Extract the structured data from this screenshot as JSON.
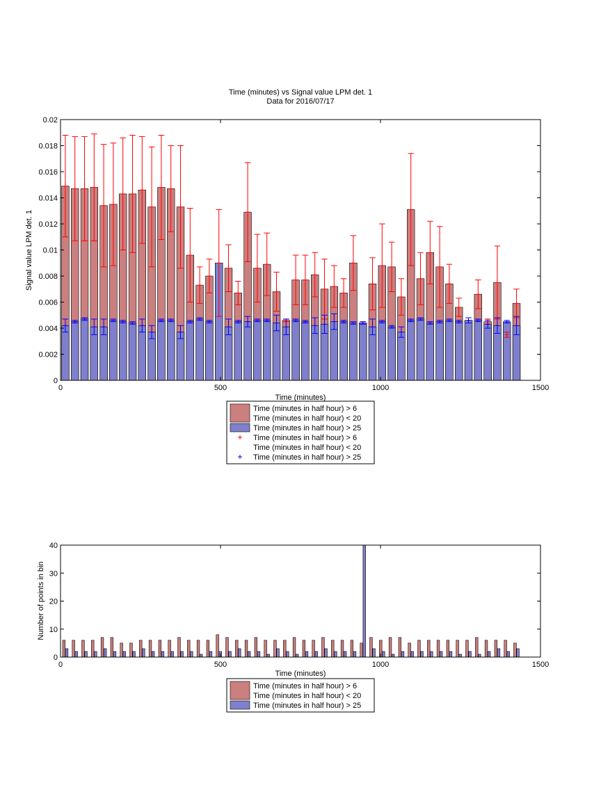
{
  "colors": {
    "red_fill": "#cc7f7f",
    "blue_fill": "#7f7fcc",
    "red_err": "#ff0000",
    "blue_err": "#0000ff"
  },
  "chart_data": [
    {
      "type": "bar",
      "title": "Time (minutes) vs Signal value LPM det. 1",
      "subtitle": "Data for 2016/07/17",
      "xlabel": "Time (minutes)",
      "ylabel": "Signal value LPM det. 1",
      "xlim": [
        0,
        1500
      ],
      "ylim": [
        0,
        0.02
      ],
      "xticks": [
        "0",
        "500",
        "1000",
        "1500"
      ],
      "yticks": [
        "0",
        "0.002",
        "0.004",
        "0.006",
        "0.008",
        "0.01",
        "0.012",
        "0.014",
        "0.016",
        "0.018",
        "0.02"
      ],
      "grid": false,
      "x": [
        15,
        45,
        75,
        105,
        135,
        165,
        195,
        225,
        255,
        285,
        315,
        345,
        375,
        405,
        435,
        465,
        495,
        525,
        555,
        585,
        615,
        645,
        675,
        705,
        735,
        765,
        795,
        825,
        855,
        885,
        915,
        945,
        975,
        1005,
        1035,
        1065,
        1095,
        1125,
        1155,
        1185,
        1215,
        1245,
        1275,
        1305,
        1335,
        1365,
        1395,
        1425
      ],
      "series": [
        {
          "name": "Time (minutes in half hour) > 6\nTime (minutes in half hour) < 20",
          "color": "#cc7f7f",
          "values": [
            0.0149,
            0.0147,
            0.0147,
            0.0148,
            0.0134,
            0.0135,
            0.0143,
            0.0143,
            0.0146,
            0.0133,
            0.0148,
            0.0147,
            0.0133,
            0.0096,
            0.0073,
            0.008,
            0.009,
            0.0086,
            0.0067,
            0.0129,
            0.0086,
            0.0089,
            0.0068,
            0.0046,
            0.0077,
            0.0077,
            0.0081,
            0.007,
            0.0072,
            0.0067,
            0.009,
            0.0044,
            0.0074,
            0.0088,
            0.0087,
            0.0064,
            0.0131,
            0.0078,
            0.0098,
            0.0087,
            0.0074,
            0.0056,
            0.0046,
            0.0066,
            0.0045,
            0.0075,
            0.0035,
            0.0059
          ],
          "errors": [
            0.0039,
            0.004,
            0.004,
            0.0041,
            0.0047,
            0.0047,
            0.0043,
            0.0045,
            0.0041,
            0.0046,
            0.004,
            0.0033,
            0.0047,
            0.0036,
            0.0014,
            0.0013,
            0.0041,
            0.0018,
            0.0009,
            0.0038,
            0.0026,
            0.0024,
            0.0015,
            0.0001,
            0.0019,
            0.0019,
            0.0017,
            0.0023,
            0.0016,
            0.0011,
            0.0021,
            0.0001,
            0.002,
            0.0032,
            0.0019,
            0.0014,
            0.0043,
            0.002,
            0.0024,
            0.0031,
            0.0015,
            0.0007,
            0.0002,
            0.0011,
            0.0002,
            0.0028,
            0.0002,
            0.0011
          ]
        },
        {
          "name": "Time (minutes in half hour) > 25",
          "color": "#7f7fcc",
          "values": [
            0.0042,
            0.0045,
            0.0047,
            0.0041,
            0.0041,
            0.0046,
            0.0045,
            0.0044,
            0.0042,
            0.0037,
            0.0046,
            0.0046,
            0.0037,
            0.0045,
            0.0047,
            0.0045,
            0.009,
            0.0041,
            0.0045,
            0.0045,
            0.0046,
            0.0046,
            0.0044,
            0.0041,
            0.0046,
            0.0045,
            0.0042,
            0.0043,
            0.0045,
            0.0045,
            0.0044,
            0.0044,
            0.0041,
            0.0045,
            0.0041,
            0.0037,
            0.0046,
            0.0047,
            0.0044,
            0.0045,
            0.0046,
            0.0045,
            0.0046,
            0.0046,
            0.0043,
            0.0042,
            0.0045,
            0.0042
          ],
          "errors": [
            0.0005,
            0.0001,
            0.0001,
            0.0006,
            0.0006,
            0.0001,
            0.0001,
            0.0001,
            0.0005,
            0.0005,
            0.0001,
            0.0001,
            0.0005,
            0.0001,
            0.0001,
            0.0001,
            0.0,
            0.0006,
            0.0001,
            0.0004,
            0.0001,
            0.0001,
            0.0006,
            0.0006,
            0.0001,
            0.0001,
            0.0006,
            0.0007,
            0.0006,
            0.0001,
            0.0001,
            0.0001,
            0.0006,
            0.0001,
            0.0001,
            0.0004,
            0.0001,
            0.0001,
            0.0001,
            0.0001,
            0.0001,
            0.0001,
            0.0002,
            0.0001,
            0.0003,
            0.0006,
            0.0001,
            0.0007
          ]
        }
      ],
      "legend": {
        "placement": "below",
        "entries": [
          {
            "label": "Time (minutes in half hour) > 6\nTime (minutes in half hour) < 20",
            "marker": "bar",
            "color": "#cc7f7f"
          },
          {
            "label": "Time (minutes in half hour) > 25",
            "marker": "bar",
            "color": "#7f7fcc"
          },
          {
            "label": "Time (minutes in half hour) > 6\nTime (minutes in half hour) < 20",
            "marker": "+",
            "color": "#ff0000"
          },
          {
            "label": "Time (minutes in half hour) > 25",
            "marker": "+",
            "color": "#0000ff"
          }
        ]
      }
    },
    {
      "type": "bar",
      "xlabel": "Time (minutes)",
      "ylabel": "Number of points in bin",
      "xlim": [
        0,
        1500
      ],
      "ylim": [
        0,
        40
      ],
      "xticks": [
        "0",
        "500",
        "1000",
        "1500"
      ],
      "yticks": [
        "0",
        "10",
        "20",
        "30",
        "40"
      ],
      "grid": false,
      "x": [
        15,
        45,
        75,
        105,
        135,
        165,
        195,
        225,
        255,
        285,
        315,
        345,
        375,
        405,
        435,
        465,
        495,
        525,
        555,
        585,
        615,
        645,
        675,
        705,
        735,
        765,
        795,
        825,
        855,
        885,
        915,
        945,
        975,
        1005,
        1035,
        1065,
        1095,
        1125,
        1155,
        1185,
        1215,
        1245,
        1275,
        1305,
        1335,
        1365,
        1395,
        1425
      ],
      "series": [
        {
          "name": "Time (minutes in half hour) > 6\nTime (minutes in half hour) < 20",
          "color": "#cc7f7f",
          "values": [
            6,
            6,
            6,
            6,
            7,
            7,
            5,
            5,
            6,
            6,
            6,
            6,
            7,
            6,
            6,
            6,
            8,
            7,
            6,
            6,
            7,
            6,
            6,
            6,
            7,
            6,
            6,
            7,
            6,
            6,
            6,
            5,
            7,
            6,
            7,
            7,
            5,
            6,
            6,
            6,
            6,
            6,
            6,
            7,
            6,
            6,
            6,
            5
          ]
        },
        {
          "name": "Time (minutes in half hour) > 25",
          "color": "#7f7fcc",
          "values": [
            3,
            2,
            2,
            2,
            3,
            2,
            2,
            2,
            3,
            2,
            2,
            2,
            2,
            2,
            1,
            2,
            2,
            2,
            3,
            2,
            2,
            1,
            3,
            2,
            1,
            2,
            2,
            3,
            2,
            2,
            2,
            40,
            3,
            2,
            1,
            2,
            2,
            2,
            2,
            2,
            2,
            1,
            2,
            1,
            2,
            3,
            2,
            3
          ]
        }
      ],
      "legend": {
        "placement": "below",
        "entries": [
          {
            "label": "Time (minutes in half hour) > 6\nTime (minutes in half hour) < 20",
            "marker": "bar",
            "color": "#cc7f7f"
          },
          {
            "label": "Time (minutes in half hour) > 25",
            "marker": "bar",
            "color": "#7f7fcc"
          }
        ]
      }
    }
  ]
}
